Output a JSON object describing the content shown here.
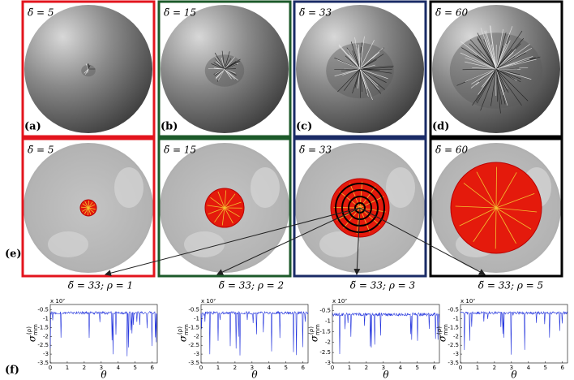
{
  "top_panels": [
    {
      "delta": "δ̃ = 5",
      "label": "(a)",
      "color": "#e3141d"
    },
    {
      "delta": "δ̃ = 15",
      "label": "(b)",
      "color": "#1c5a2a"
    },
    {
      "delta": "δ̃ = 33",
      "label": "(c)",
      "color": "#1a2b66"
    },
    {
      "delta": "δ̃ = 60",
      "label": "(d)",
      "color": "#000000"
    }
  ],
  "bottom_panels": [
    {
      "delta": "δ̃ = 5",
      "color": "#e3141d"
    },
    {
      "delta": "δ̃ = 15",
      "color": "#1c5a2a"
    },
    {
      "delta": "δ̃ = 33",
      "color": "#1a2b66"
    },
    {
      "delta": "δ̃ = 60",
      "color": "#000000"
    }
  ],
  "row_label_e": "(e)",
  "row_label_f": "(f)",
  "plots": [
    {
      "title": "δ̃ = 33; ρ = 1",
      "scale": "x 10⁷",
      "xlabel": "θ",
      "ylabel": "σ",
      "ylabel_sup": "(ρ)",
      "ylabel_sub": "mm",
      "xticks": [
        0,
        1,
        2,
        3,
        4,
        5,
        6
      ],
      "yticks": [
        -0.5,
        -1,
        -1.5,
        -2,
        -2.5,
        -3,
        -3.5
      ]
    },
    {
      "title": "δ̃ = 33; ρ = 2",
      "scale": "x 10⁷",
      "xlabel": "θ",
      "ylabel": "σ",
      "ylabel_sup": "(ρ)",
      "ylabel_sub": "mm",
      "xticks": [
        0,
        1,
        2,
        3,
        4,
        5,
        6
      ],
      "yticks": [
        -0.5,
        -1,
        -1.5,
        -2,
        -2.5,
        -3,
        -3.5
      ]
    },
    {
      "title": "δ̃ = 33; ρ = 3",
      "scale": "x 10⁷",
      "xlabel": "θ",
      "ylabel": "σ",
      "ylabel_sup": "(ρ)",
      "ylabel_sub": "mm",
      "xticks": [
        0,
        1,
        2,
        3,
        4,
        5,
        6
      ],
      "yticks": [
        -0.5,
        -1,
        -1.5,
        -2,
        -2.5,
        -3
      ]
    },
    {
      "title": "δ̃ = 33; ρ = 5",
      "scale": "x 10⁷",
      "xlabel": "θ",
      "ylabel": "σ",
      "ylabel_sup": "(ρ)",
      "ylabel_sub": "mm",
      "xticks": [
        0,
        1,
        2,
        3,
        4,
        5,
        6
      ],
      "yticks": [
        -0.5,
        -1,
        -1.5,
        -2,
        -2.5,
        -3,
        -3.5
      ]
    }
  ]
}
